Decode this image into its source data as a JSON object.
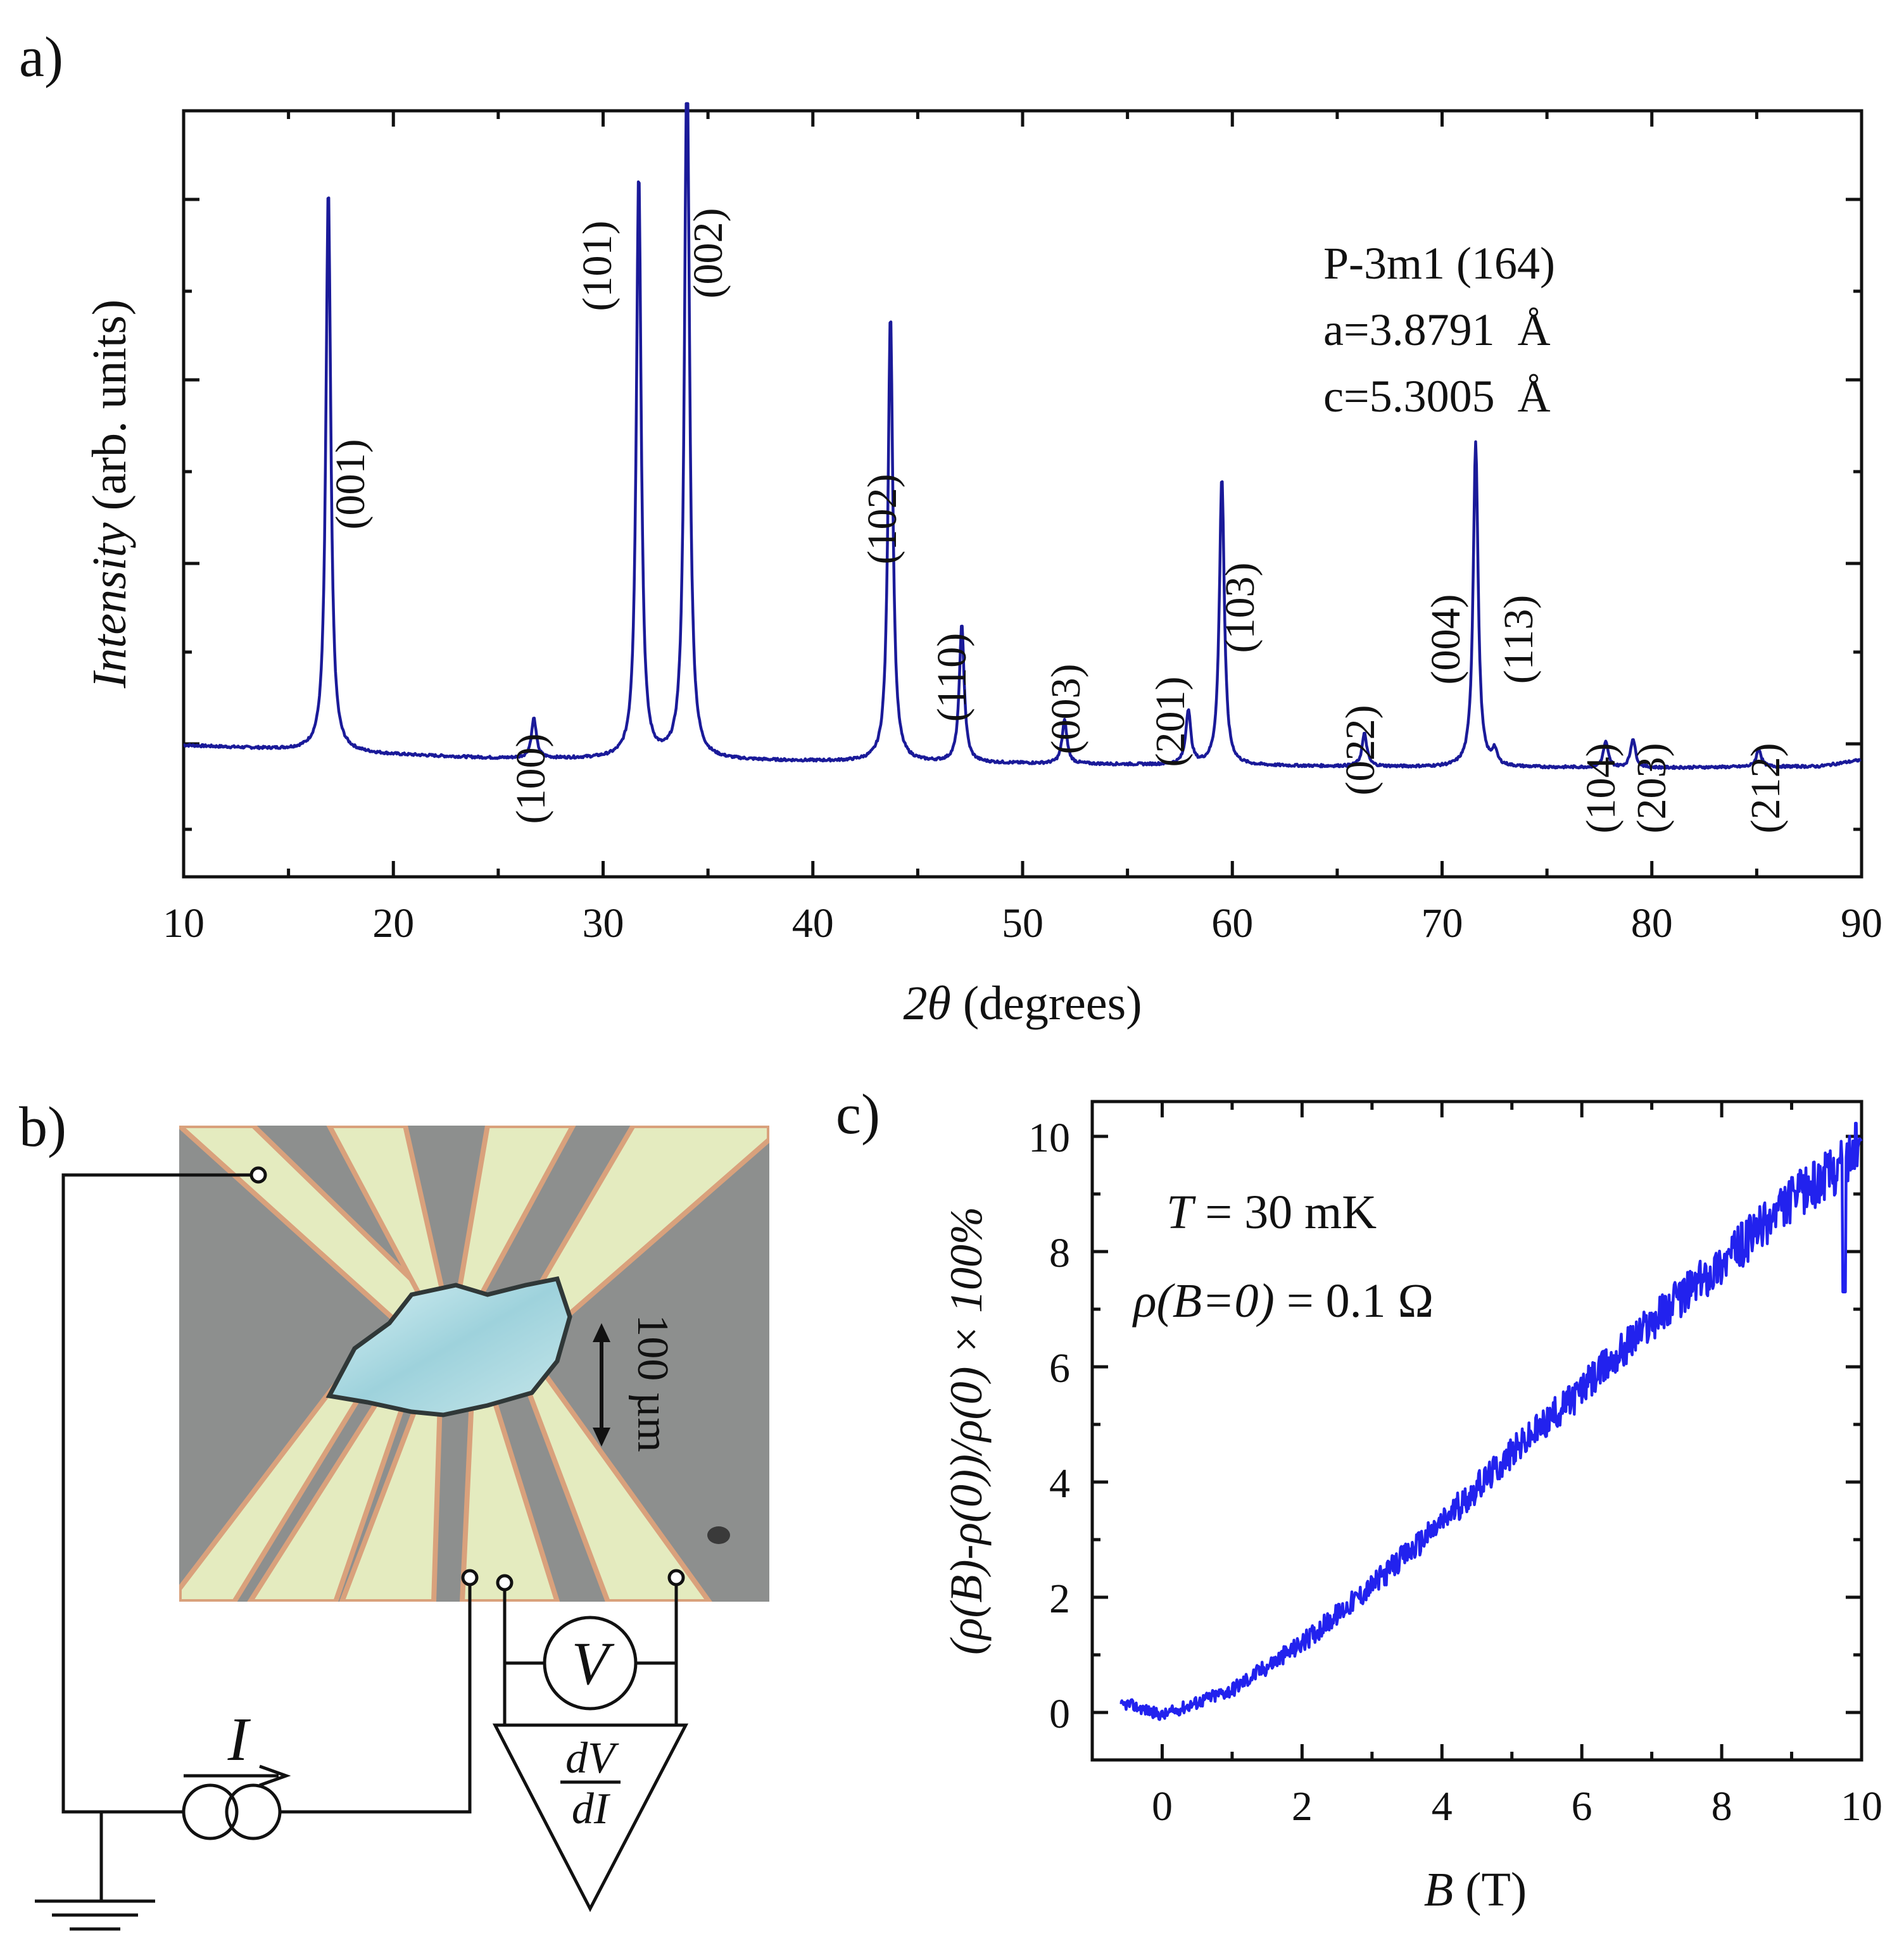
{
  "panels": {
    "a": {
      "label": "a)"
    },
    "b": {
      "label": "b)"
    },
    "c": {
      "label": "c)"
    }
  },
  "chart_data": [
    {
      "id": "xrd",
      "type": "line",
      "xlabel_italic": "2θ",
      "xlabel_rest": " (degrees)",
      "ylabel_italic": "Intensity",
      "ylabel_rest": " (arb. units)",
      "xlim": [
        10,
        90
      ],
      "ylim": [
        0,
        100
      ],
      "xticks": [
        10,
        20,
        30,
        40,
        50,
        60,
        70,
        80,
        90
      ],
      "xtick_labels": [
        "10",
        "20",
        "30",
        "40",
        "50",
        "60",
        "70",
        "80",
        "90"
      ],
      "color": "#1a1a99",
      "baseline": [
        [
          10,
          12.3
        ],
        [
          15,
          11.7
        ],
        [
          20,
          11.0
        ],
        [
          25,
          10.5
        ],
        [
          30,
          10.4
        ],
        [
          40,
          10.1
        ],
        [
          50,
          9.8
        ],
        [
          60,
          9.5
        ],
        [
          70,
          9.3
        ],
        [
          80,
          9.2
        ],
        [
          88,
          9.4
        ],
        [
          90,
          10.3
        ]
      ],
      "peaks": [
        {
          "hkl": "(001)",
          "x": 16.9,
          "height": 78
        },
        {
          "hkl": "(100)",
          "x": 26.7,
          "height": 5.5
        },
        {
          "hkl": "(101)",
          "x": 31.7,
          "height": 81
        },
        {
          "hkl": "(002)",
          "x": 34.0,
          "height": 100
        },
        {
          "hkl": "(102)",
          "x": 43.7,
          "height": 62
        },
        {
          "hkl": "(110)",
          "x": 47.1,
          "height": 19
        },
        {
          "hkl": "(003)",
          "x": 52.0,
          "height": 6
        },
        {
          "hkl": "(201)",
          "x": 57.9,
          "height": 7.5
        },
        {
          "hkl": "(103)",
          "x": 59.5,
          "height": 40
        },
        {
          "hkl": "(022)",
          "x": 66.3,
          "height": 4.5
        },
        {
          "hkl": "(004)",
          "x": 71.6,
          "height": 45
        },
        {
          "hkl": "(113)",
          "x": 72.5,
          "height": 2
        },
        {
          "hkl": "(104)",
          "x": 77.8,
          "height": 3.5
        },
        {
          "hkl": "(203)",
          "x": 79.1,
          "height": 4
        },
        {
          "hkl": "(212)",
          "x": 85.1,
          "height": 2.5
        }
      ],
      "annotations": [
        "P-3m1 (164)",
        "a=3.8791  Å",
        "c=5.3005  Å"
      ]
    },
    {
      "id": "magnetoresistance",
      "type": "line",
      "xlabel_italic": "B",
      "xlabel_rest": " (T)",
      "ylabel": "(ρ(B)-ρ(0))/ρ(0) × 100%",
      "xlim": [
        -1,
        10
      ],
      "ylim": [
        -0.6,
        10.5
      ],
      "xticks": [
        0,
        2,
        4,
        6,
        8,
        10
      ],
      "xtick_labels": [
        "0",
        "2",
        "4",
        "6",
        "8",
        "10"
      ],
      "yticks": [
        0,
        2,
        4,
        6,
        8,
        10
      ],
      "ytick_labels": [
        "0",
        "2",
        "4",
        "6",
        "8",
        "10"
      ],
      "color": "#2222ee",
      "x": [
        -0.6,
        -0.5,
        0,
        1,
        2,
        3,
        4,
        5,
        6,
        7,
        8,
        9,
        9.6,
        10
      ],
      "y": [
        0.1,
        0.15,
        -0.05,
        0.4,
        1.2,
        2.2,
        3.3,
        4.5,
        5.6,
        6.8,
        7.8,
        8.9,
        9.4,
        9.9
      ],
      "annotation_T": {
        "italic": "T",
        "rest": " = 30 mK"
      },
      "annotation_rho": {
        "italic": "ρ(B=0)",
        "rest": " = 0.1 Ω"
      }
    }
  ],
  "schematic": {
    "scale_label": "100 µm",
    "current_symbol": "I",
    "voltmeter_symbol": "V",
    "amp_numerator": "dV",
    "amp_denominator": "dI"
  }
}
